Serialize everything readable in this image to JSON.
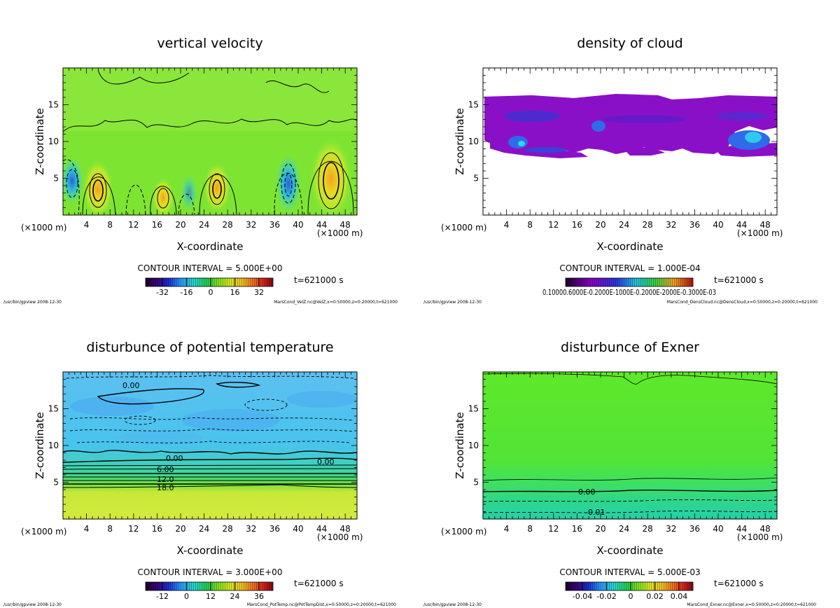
{
  "footer_path": "/usr/bin/gpview  2008-12-30",
  "chart_data": [
    {
      "type": "heatmap",
      "title": "vertical velocity",
      "xlabel": "X-coordinate",
      "ylabel": "Z-coordinate",
      "x_unit_left": "(×1000 m)",
      "x_unit_right": "(×1000 m)",
      "x_ticks": [
        "4",
        "8",
        "12",
        "16",
        "20",
        "24",
        "28",
        "32",
        "36",
        "40",
        "44",
        "48"
      ],
      "y_ticks": [
        "5",
        "10",
        "15"
      ],
      "xlim": [
        0,
        50
      ],
      "ylim": [
        0,
        20
      ],
      "contour_interval": "CONTOUR INTERVAL = 5.000E+00",
      "time": "t=621000 s",
      "colorbar_ticks": [
        "-32",
        "-16",
        "0",
        "16",
        "32"
      ],
      "source": "MarsCond_VelZ.nc@VelZ,x=0:50000,z=0:20000,t=621000"
    },
    {
      "type": "heatmap",
      "title": "density of cloud",
      "xlabel": "X-coordinate",
      "ylabel": "Z-coordinate",
      "x_unit_left": "(×1000 m)",
      "x_unit_right": "(×1000 m)",
      "x_ticks": [
        "4",
        "8",
        "12",
        "16",
        "20",
        "24",
        "28",
        "32",
        "36",
        "40",
        "44",
        "48"
      ],
      "y_ticks": [
        "5",
        "10",
        "15"
      ],
      "xlim": [
        0,
        50
      ],
      "ylim": [
        0,
        20
      ],
      "contour_interval": "CONTOUR INTERVAL = 1.000E-04",
      "time": "t=621000 s",
      "colorbar_ticks": [
        "0.10000.6000E-0.2000E-1000E-0.2000E-2000E-0.3000E-03"
      ],
      "source": "MarsCond_DensCloud.nc@DensCloud,x=0:50000,z=0:20000,t=621000"
    },
    {
      "type": "heatmap",
      "title": "disturbunce of potential temperature",
      "xlabel": "X-coordinate",
      "ylabel": "Z-coordinate",
      "x_unit_left": "(×1000 m)",
      "x_unit_right": "(×1000 m)",
      "x_ticks": [
        "4",
        "8",
        "12",
        "16",
        "20",
        "24",
        "28",
        "32",
        "36",
        "40",
        "44",
        "48"
      ],
      "y_ticks": [
        "5",
        "10",
        "15"
      ],
      "xlim": [
        0,
        50
      ],
      "ylim": [
        0,
        20
      ],
      "contour_interval": "CONTOUR INTERVAL = 3.000E+00",
      "time": "t=621000 s",
      "colorbar_ticks": [
        "-12",
        "0",
        "12",
        "24",
        "36"
      ],
      "contour_labels": [
        "0.00",
        "0.00",
        "0.00",
        "6.00",
        "12.0",
        "18.0"
      ],
      "source": "MarsCond_PotTemp.nc@PotTempDist,x=0:50000,z=0:20000,t=621000"
    },
    {
      "type": "heatmap",
      "title": "disturbunce of Exner",
      "xlabel": "X-coordinate",
      "ylabel": "Z-coordinate",
      "x_unit_left": "(×1000 m)",
      "x_unit_right": "(×1000 m)",
      "x_ticks": [
        "4",
        "8",
        "12",
        "16",
        "20",
        "24",
        "28",
        "32",
        "36",
        "40",
        "44",
        "48"
      ],
      "y_ticks": [
        "5",
        "10",
        "15"
      ],
      "xlim": [
        0,
        50
      ],
      "ylim": [
        0,
        20
      ],
      "contour_interval": "CONTOUR INTERVAL = 5.000E-03",
      "time": "t=621000 s",
      "colorbar_ticks": [
        "-0.04",
        "-0.02",
        "0",
        "0.02",
        "0.04"
      ],
      "contour_labels": [
        "0.00",
        "-0.01"
      ],
      "source": "MarsCond_Exner.nc@Exner,x=0:50000,z=0:20000,t=621000"
    }
  ]
}
